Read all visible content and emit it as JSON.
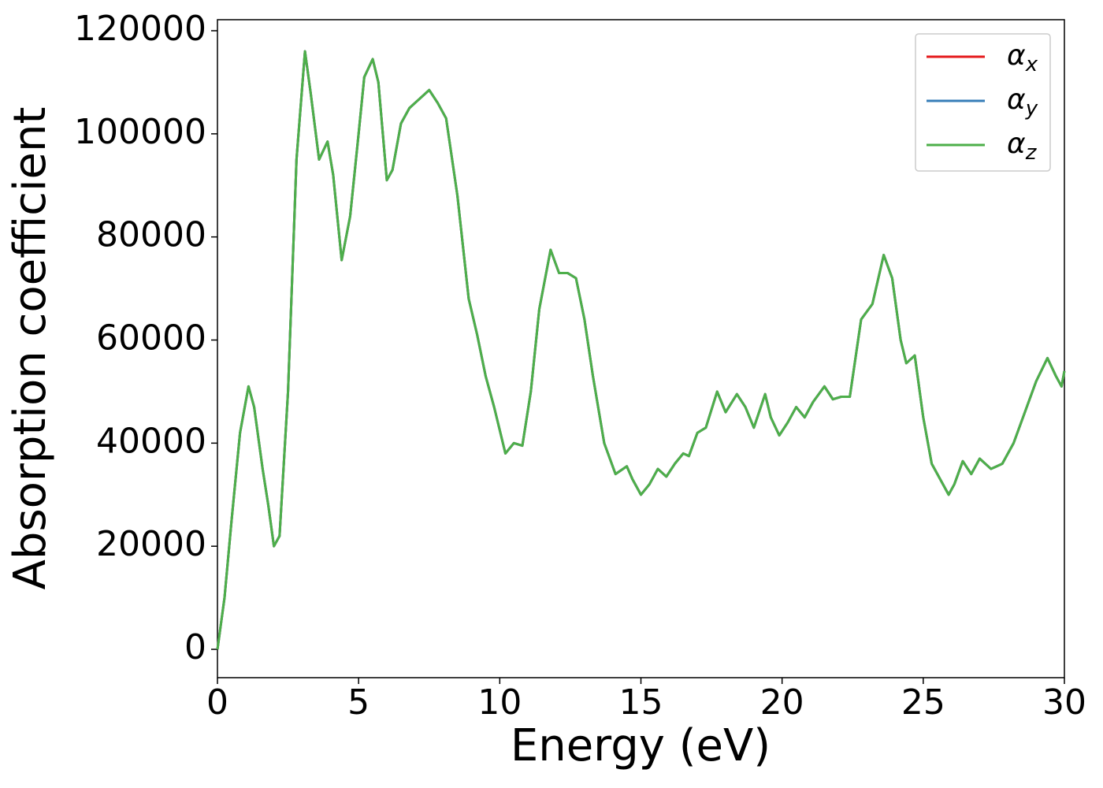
{
  "chart_data": {
    "type": "line",
    "xlabel": "Energy (eV)",
    "ylabel": "Absorption coefficient",
    "x": [
      0,
      0.25,
      0.5,
      0.8,
      1.1,
      1.3,
      1.6,
      1.8,
      2.0,
      2.2,
      2.5,
      2.8,
      3.1,
      3.3,
      3.6,
      3.9,
      4.1,
      4.4,
      4.7,
      5.0,
      5.2,
      5.5,
      5.7,
      6.0,
      6.2,
      6.5,
      6.8,
      7.1,
      7.5,
      7.8,
      8.1,
      8.5,
      8.9,
      9.2,
      9.5,
      9.8,
      10.2,
      10.5,
      10.8,
      11.1,
      11.4,
      11.8,
      12.1,
      12.4,
      12.7,
      13.0,
      13.3,
      13.7,
      14.1,
      14.5,
      14.7,
      15.0,
      15.3,
      15.6,
      15.9,
      16.2,
      16.5,
      16.7,
      17.0,
      17.3,
      17.7,
      18.0,
      18.4,
      18.7,
      19.0,
      19.4,
      19.6,
      19.9,
      20.2,
      20.5,
      20.8,
      21.1,
      21.5,
      21.8,
      22.1,
      22.4,
      22.8,
      23.2,
      23.6,
      23.9,
      24.2,
      24.4,
      24.7,
      25.0,
      25.3,
      25.6,
      25.9,
      26.1,
      26.4,
      26.7,
      27.0,
      27.4,
      27.8,
      28.2,
      28.6,
      29.0,
      29.4,
      29.7,
      29.9,
      30.0
    ],
    "series": [
      {
        "name": "αx",
        "color": "#e41a1c",
        "values": [
          0,
          10000,
          25000,
          42000,
          51000,
          47000,
          35000,
          28000,
          20000,
          22000,
          50000,
          95000,
          116000,
          108000,
          95000,
          98500,
          92000,
          75500,
          84000,
          100000,
          111000,
          114500,
          110000,
          91000,
          93000,
          102000,
          105000,
          106500,
          108500,
          106000,
          103000,
          88000,
          68000,
          61000,
          53000,
          47000,
          38000,
          40000,
          39500,
          50000,
          66000,
          77500,
          73000,
          73000,
          72000,
          64000,
          53000,
          40000,
          34000,
          35500,
          33000,
          30000,
          32000,
          35000,
          33500,
          36000,
          38000,
          37500,
          42000,
          43000,
          50000,
          46000,
          49500,
          47000,
          43000,
          49500,
          45000,
          41500,
          44000,
          47000,
          45000,
          48000,
          51000,
          48500,
          49000,
          49000,
          64000,
          67000,
          76500,
          72000,
          60000,
          55500,
          57000,
          45000,
          36000,
          33000,
          30000,
          32000,
          36500,
          34000,
          37000,
          35000,
          36000,
          40000,
          46000,
          52000,
          56500,
          53000,
          51000,
          54000
        ]
      },
      {
        "name": "αy",
        "color": "#377eb8",
        "values": [
          0,
          10000,
          25000,
          42000,
          51000,
          47000,
          35000,
          28000,
          20000,
          22000,
          50000,
          95000,
          116000,
          108000,
          95000,
          98500,
          92000,
          75500,
          84000,
          100000,
          111000,
          114500,
          110000,
          91000,
          93000,
          102000,
          105000,
          106500,
          108500,
          106000,
          103000,
          88000,
          68000,
          61000,
          53000,
          47000,
          38000,
          40000,
          39500,
          50000,
          66000,
          77500,
          73000,
          73000,
          72000,
          64000,
          53000,
          40000,
          34000,
          35500,
          33000,
          30000,
          32000,
          35000,
          33500,
          36000,
          38000,
          37500,
          42000,
          43000,
          50000,
          46000,
          49500,
          47000,
          43000,
          49500,
          45000,
          41500,
          44000,
          47000,
          45000,
          48000,
          51000,
          48500,
          49000,
          49000,
          64000,
          67000,
          76500,
          72000,
          60000,
          55500,
          57000,
          45000,
          36000,
          33000,
          30000,
          32000,
          36500,
          34000,
          37000,
          35000,
          36000,
          40000,
          46000,
          52000,
          56500,
          53000,
          51000,
          54000
        ]
      },
      {
        "name": "αz",
        "color": "#4daf4a",
        "values": [
          0,
          10000,
          25000,
          42000,
          51000,
          47000,
          35000,
          28000,
          20000,
          22000,
          50000,
          95000,
          116000,
          108000,
          95000,
          98500,
          92000,
          75500,
          84000,
          100000,
          111000,
          114500,
          110000,
          91000,
          93000,
          102000,
          105000,
          106500,
          108500,
          106000,
          103000,
          88000,
          68000,
          61000,
          53000,
          47000,
          38000,
          40000,
          39500,
          50000,
          66000,
          77500,
          73000,
          73000,
          72000,
          64000,
          53000,
          40000,
          34000,
          35500,
          33000,
          30000,
          32000,
          35000,
          33500,
          36000,
          38000,
          37500,
          42000,
          43000,
          50000,
          46000,
          49500,
          47000,
          43000,
          49500,
          45000,
          41500,
          44000,
          47000,
          45000,
          48000,
          51000,
          48500,
          49000,
          49000,
          64000,
          67000,
          76500,
          72000,
          60000,
          55500,
          57000,
          45000,
          36000,
          33000,
          30000,
          32000,
          36500,
          34000,
          37000,
          35000,
          36000,
          40000,
          46000,
          52000,
          56500,
          53000,
          51000,
          54000
        ]
      }
    ],
    "xlim": [
      0,
      30
    ],
    "xticks": [
      0,
      5,
      10,
      15,
      20,
      25,
      30
    ],
    "ylim": [
      -5500,
      122140
    ],
    "yticks": [
      0,
      20000,
      40000,
      60000,
      80000,
      100000,
      120000
    ],
    "grid": false,
    "legend": "upper right"
  }
}
